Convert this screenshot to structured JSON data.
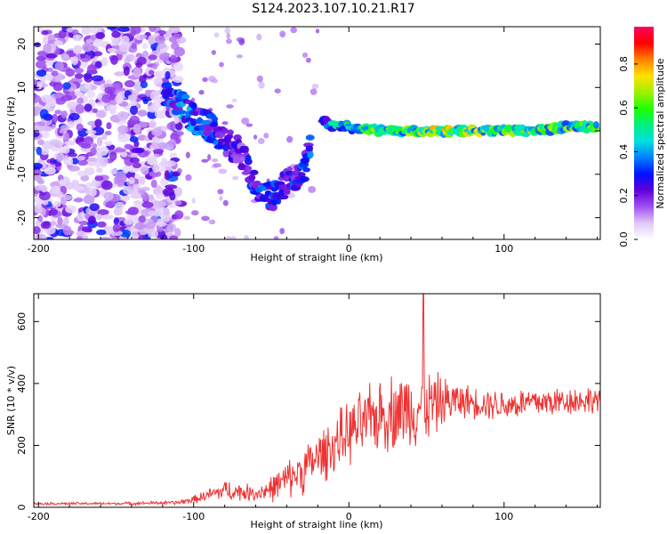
{
  "title": "S124.2023.107.10.21.R17",
  "chart_data": [
    {
      "type": "heatmap",
      "xlabel": "Height of straight line (km)",
      "ylabel": "Frequency (Hz)",
      "xlim": [
        -203,
        162
      ],
      "ylim": [
        -25,
        24
      ],
      "xticks": [
        -200,
        -100,
        0,
        100
      ],
      "yticks": [
        -20,
        -10,
        0,
        10,
        20
      ],
      "colorbar": {
        "label": "Normalized spectral amplitude",
        "range": [
          0,
          0.97
        ],
        "ticks": [
          0.0,
          0.2,
          0.4,
          0.6,
          0.8
        ],
        "colormap": [
          "#ffffff",
          "#e0c8f8",
          "#a050f0",
          "#6000d8",
          "#0010ff",
          "#0080ff",
          "#00e0e0",
          "#00f080",
          "#20ff00",
          "#a0f000",
          "#ffe000",
          "#ff8000",
          "#ff0000",
          "#ff0060"
        ]
      },
      "ridge": [
        {
          "x": -200,
          "freq": null,
          "amplitude": 0.1
        },
        {
          "x": -120,
          "freq": 8,
          "amplitude": 0.25
        },
        {
          "x": -110,
          "freq": 7,
          "amplitude": 0.35
        },
        {
          "x": -100,
          "freq": 3,
          "amplitude": 0.35
        },
        {
          "x": -90,
          "freq": 1,
          "amplitude": 0.3
        },
        {
          "x": -80,
          "freq": -2,
          "amplitude": 0.3
        },
        {
          "x": -70,
          "freq": -5,
          "amplitude": 0.2
        },
        {
          "x": -60,
          "freq": -13,
          "amplitude": 0.3
        },
        {
          "x": -50,
          "freq": -15,
          "amplitude": 0.3
        },
        {
          "x": -40,
          "freq": -12,
          "amplitude": 0.3
        },
        {
          "x": -30,
          "freq": -10,
          "amplitude": 0.3
        },
        {
          "x": -20,
          "freq": 3,
          "amplitude": 0.35
        },
        {
          "x": -10,
          "freq": 1,
          "amplitude": 0.4
        },
        {
          "x": 0,
          "freq": 1,
          "amplitude": 0.5
        },
        {
          "x": 20,
          "freq": 0,
          "amplitude": 0.6
        },
        {
          "x": 40,
          "freq": 0,
          "amplitude": 0.6
        },
        {
          "x": 60,
          "freq": 0,
          "amplitude": 0.65
        },
        {
          "x": 80,
          "freq": 0,
          "amplitude": 0.6
        },
        {
          "x": 100,
          "freq": 0,
          "amplitude": 0.6
        },
        {
          "x": 120,
          "freq": 0,
          "amplitude": 0.6
        },
        {
          "x": 140,
          "freq": 1,
          "amplitude": 0.6
        },
        {
          "x": 160,
          "freq": 1,
          "amplitude": 0.55
        }
      ]
    },
    {
      "type": "line",
      "xlabel": "Height of straight line (km)",
      "ylabel": "SNR (10 * v/v)",
      "xlim": [
        -203,
        162
      ],
      "ylim": [
        0,
        690
      ],
      "xticks": [
        -200,
        -100,
        0,
        100
      ],
      "yticks": [
        0,
        200,
        400,
        600
      ],
      "color": "#ee3333",
      "envelope": {
        "x": [
          -203,
          -150,
          -110,
          -100,
          -90,
          -80,
          -70,
          -60,
          -50,
          -40,
          -30,
          -20,
          -10,
          0,
          10,
          20,
          30,
          40,
          50,
          60,
          70,
          80,
          90,
          100,
          110,
          120,
          130,
          140,
          150,
          162
        ],
        "mean": [
          12,
          12,
          15,
          25,
          40,
          55,
          50,
          45,
          60,
          90,
          120,
          160,
          200,
          240,
          270,
          300,
          310,
          320,
          330,
          340,
          345,
          340,
          335,
          330,
          335,
          340,
          340,
          345,
          345,
          350
        ],
        "amp": [
          5,
          5,
          8,
          15,
          25,
          40,
          35,
          30,
          50,
          70,
          90,
          100,
          110,
          120,
          130,
          140,
          150,
          150,
          140,
          100,
          70,
          60,
          60,
          60,
          60,
          60,
          60,
          55,
          55,
          50
        ]
      },
      "peak": {
        "x": 48,
        "y": 690
      }
    }
  ]
}
